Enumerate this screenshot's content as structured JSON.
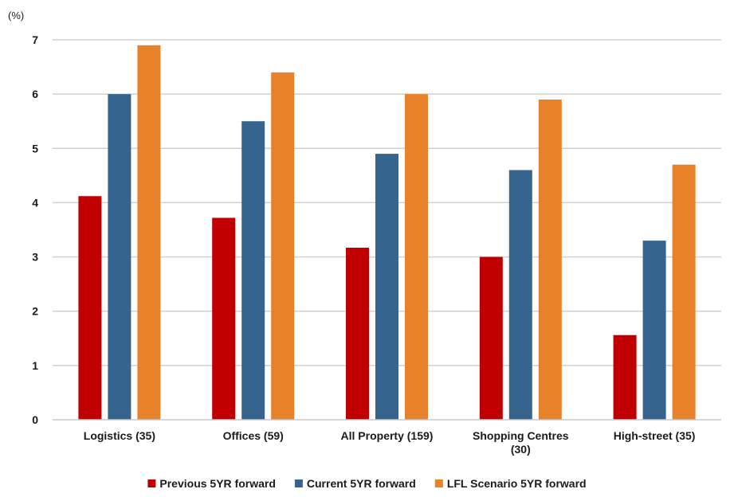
{
  "chart_data": {
    "type": "bar",
    "title": "",
    "xlabel": "",
    "ylabel": "(%)",
    "ylim": [
      0,
      7
    ],
    "yticks": [
      0,
      1,
      2,
      3,
      4,
      5,
      6,
      7
    ],
    "grid": true,
    "legend_position": "bottom",
    "categories": [
      [
        "Logistics (35)"
      ],
      [
        "Offices (59)"
      ],
      [
        "All Property (159)"
      ],
      [
        "Shopping Centres",
        "(30)"
      ],
      [
        "High-street (35)"
      ]
    ],
    "series": [
      {
        "name": "Previous 5YR forward",
        "color": "#c00000",
        "values": [
          4.12,
          3.72,
          3.17,
          3.0,
          1.56
        ]
      },
      {
        "name": "Current 5YR forward",
        "color": "#35648e",
        "values": [
          6.0,
          5.5,
          4.9,
          4.6,
          3.3
        ]
      },
      {
        "name": "LFL Scenario 5YR forward",
        "color": "#e8822a",
        "values": [
          6.9,
          6.4,
          6.0,
          5.9,
          4.7
        ]
      }
    ]
  }
}
